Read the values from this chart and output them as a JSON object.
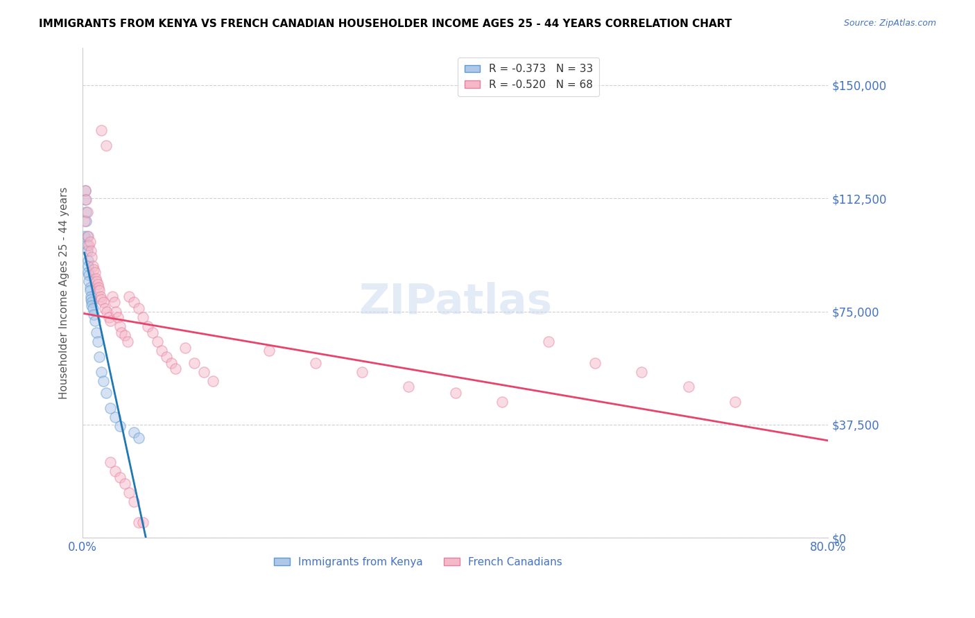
{
  "title": "IMMIGRANTS FROM KENYA VS FRENCH CANADIAN HOUSEHOLDER INCOME AGES 25 - 44 YEARS CORRELATION CHART",
  "source": "Source: ZipAtlas.com",
  "xlabel": "",
  "ylabel": "Householder Income Ages 25 - 44 years",
  "xlim": [
    0.0,
    0.8
  ],
  "ylim": [
    0,
    162500
  ],
  "yticks": [
    0,
    37500,
    75000,
    112500,
    150000
  ],
  "ytick_labels": [
    "$0",
    "$37,500",
    "$75,000",
    "$112,500",
    "$150,000"
  ],
  "xticks": [
    0.0,
    0.1,
    0.2,
    0.3,
    0.4,
    0.5,
    0.6,
    0.7,
    0.8
  ],
  "xtick_labels": [
    "0.0%",
    "",
    "",
    "",
    "",
    "",
    "",
    "",
    "80.0%"
  ],
  "kenya_color": "#aec6e8",
  "kenya_edge_color": "#5b9bd5",
  "french_color": "#f4b8c8",
  "french_edge_color": "#e87fa0",
  "kenya_line_color": "#1f77b4",
  "french_line_color": "#e8436a",
  "dashed_line_color": "#cccccc",
  "legend_kenya_R": "-0.373",
  "legend_kenya_N": "33",
  "legend_french_R": "-0.520",
  "legend_french_N": "68",
  "kenya_x": [
    0.002,
    0.003,
    0.003,
    0.004,
    0.004,
    0.005,
    0.005,
    0.005,
    0.006,
    0.006,
    0.006,
    0.007,
    0.007,
    0.008,
    0.008,
    0.009,
    0.009,
    0.01,
    0.01,
    0.011,
    0.012,
    0.013,
    0.015,
    0.016,
    0.018,
    0.02,
    0.022,
    0.025,
    0.03,
    0.035,
    0.04,
    0.055,
    0.06
  ],
  "kenya_y": [
    100000,
    115000,
    112000,
    108000,
    105000,
    100000,
    97000,
    95000,
    92000,
    90000,
    88000,
    87000,
    85000,
    83000,
    82000,
    80000,
    79000,
    78000,
    77000,
    76000,
    74000,
    72000,
    68000,
    65000,
    60000,
    55000,
    52000,
    48000,
    43000,
    40000,
    37000,
    35000,
    33000
  ],
  "french_x": [
    0.002,
    0.003,
    0.004,
    0.005,
    0.006,
    0.007,
    0.008,
    0.009,
    0.01,
    0.011,
    0.012,
    0.013,
    0.014,
    0.015,
    0.016,
    0.017,
    0.018,
    0.019,
    0.02,
    0.022,
    0.024,
    0.026,
    0.028,
    0.03,
    0.032,
    0.034,
    0.036,
    0.038,
    0.04,
    0.042,
    0.045,
    0.048,
    0.05,
    0.055,
    0.06,
    0.065,
    0.07,
    0.075,
    0.08,
    0.085,
    0.09,
    0.095,
    0.1,
    0.11,
    0.12,
    0.13,
    0.14,
    0.2,
    0.25,
    0.3,
    0.35,
    0.4,
    0.45,
    0.5,
    0.55,
    0.6,
    0.65,
    0.7,
    0.02,
    0.025,
    0.03,
    0.035,
    0.04,
    0.045,
    0.05,
    0.055,
    0.06,
    0.065
  ],
  "french_y": [
    105000,
    115000,
    112000,
    108000,
    100000,
    97000,
    98000,
    95000,
    93000,
    90000,
    89000,
    88000,
    86000,
    85000,
    84000,
    83000,
    82000,
    80000,
    79000,
    78000,
    76000,
    75000,
    73000,
    72000,
    80000,
    78000,
    75000,
    73000,
    70000,
    68000,
    67000,
    65000,
    80000,
    78000,
    76000,
    73000,
    70000,
    68000,
    65000,
    62000,
    60000,
    58000,
    56000,
    63000,
    58000,
    55000,
    52000,
    62000,
    58000,
    55000,
    50000,
    48000,
    45000,
    65000,
    58000,
    55000,
    50000,
    45000,
    135000,
    130000,
    25000,
    22000,
    20000,
    18000,
    15000,
    12000,
    5000,
    5000
  ],
  "watermark": "ZIPatlas",
  "marker_size": 120,
  "alpha": 0.5
}
